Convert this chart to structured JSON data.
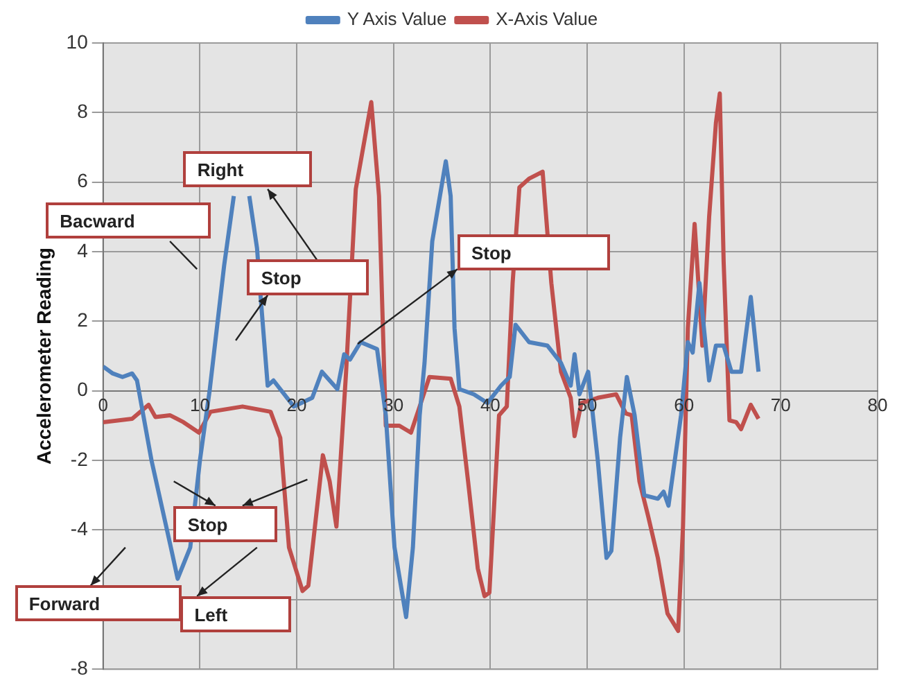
{
  "chart_data": {
    "type": "line",
    "ylabel": "Accelerometer Reading",
    "xlim": [
      0,
      80
    ],
    "xticks": [
      0,
      10,
      20,
      30,
      40,
      50,
      60,
      70,
      80
    ],
    "ylim": [
      -8,
      10
    ],
    "yticks": [
      -8,
      {
        "value": -6,
        "label": null
      },
      -4,
      -2,
      0,
      2,
      4,
      6,
      8,
      10
    ],
    "grid": true,
    "legend": "top",
    "marker": "none",
    "line_style": "solid",
    "series": [
      {
        "name": "Y Axis Value",
        "color": "#4f81bd",
        "x": [
          0,
          1,
          2,
          3,
          3.5,
          5,
          7,
          7.7,
          9,
          10,
          11,
          12.5,
          13.5,
          14.3,
          15.1,
          15.9,
          16.3,
          17,
          17.6,
          19.7,
          21.6,
          22.6,
          24.2,
          24.9,
          25.5,
          26.6,
          28.3,
          29.2,
          30.1,
          31.3,
          32,
          32.7,
          33.2,
          34,
          35.4,
          35.9,
          36.3,
          36.8,
          38.3,
          39.7,
          41.1,
          42,
          42.6,
          44,
          45.9,
          47.3,
          48.3,
          48.7,
          49.2,
          50.1,
          51.1,
          52,
          52.5,
          53.4,
          54.1,
          54.9,
          55.9,
          57.3,
          57.9,
          58.4,
          59.7,
          60.4,
          60.9,
          61.6,
          62.6,
          63.3,
          64.1,
          64.9,
          65.9,
          66.9,
          67.7
        ],
        "values": [
          0.7,
          0.5,
          0.4,
          0.5,
          0.3,
          -2,
          -4.5,
          -5.4,
          -4.5,
          -2,
          0,
          3.6,
          5.6,
          null,
          5.6,
          4.1,
          2.6,
          0.15,
          0.3,
          -0.45,
          -0.2,
          0.55,
          0.05,
          1.05,
          0.9,
          1.4,
          1.2,
          -0.7,
          -4.5,
          -6.5,
          -4.5,
          -0.7,
          0.8,
          4.3,
          6.6,
          5.6,
          1.8,
          0.05,
          -0.1,
          -0.35,
          0.15,
          0.4,
          1.9,
          1.4,
          1.3,
          0.8,
          0.15,
          1.05,
          -0.1,
          0.55,
          -2,
          -4.8,
          -4.6,
          -1.35,
          0.4,
          -0.7,
          -3,
          -3.1,
          -2.9,
          -3.3,
          -0.7,
          1.4,
          1.1,
          3.1,
          0.3,
          1.3,
          1.3,
          0.55,
          0.55,
          2.7,
          0.55
        ]
      },
      {
        "name": "X-Axis Value",
        "color": "#c0504d",
        "x": [
          0,
          3,
          4.7,
          5.4,
          6.9,
          8.3,
          9.9,
          11.1,
          14.4,
          17.3,
          18.3,
          19.2,
          20.6,
          21.2,
          22.7,
          23.4,
          24.1,
          25.1,
          26.1,
          27.7,
          28.5,
          29.2,
          30.6,
          31.8,
          32.7,
          33.7,
          35.9,
          36.8,
          37.7,
          38.7,
          39.4,
          39.9,
          40.9,
          41.7,
          42.3,
          43,
          44,
          45.4,
          46.3,
          47.3,
          48.3,
          48.7,
          49.4,
          51.1,
          53,
          54,
          54.6,
          55.4,
          56.3,
          57.3,
          58.3,
          59.4,
          59.9,
          60.4,
          61.1,
          61.9,
          62.6,
          63.3,
          63.7,
          64.1,
          64.7,
          65.4,
          65.9,
          66.9,
          67.7
        ],
        "values": [
          -0.9,
          -0.8,
          -0.4,
          -0.75,
          -0.7,
          -0.9,
          -1.2,
          -0.6,
          -0.45,
          -0.6,
          -1.35,
          -4.5,
          -5.75,
          -5.6,
          -1.85,
          -2.6,
          -3.9,
          0.55,
          5.8,
          8.3,
          5.6,
          -1,
          -1,
          -1.2,
          -0.45,
          0.4,
          0.35,
          -0.45,
          -2.6,
          -5.1,
          -5.9,
          -5.8,
          -0.7,
          -0.45,
          3.1,
          5.85,
          6.1,
          6.3,
          3.1,
          0.55,
          -0.2,
          -1.3,
          -0.35,
          -0.2,
          -0.1,
          -0.65,
          -0.7,
          -2.6,
          -3.6,
          -4.8,
          -6.4,
          -6.9,
          -3.9,
          1.8,
          4.8,
          1.3,
          5,
          7.7,
          8.55,
          3.7,
          -0.85,
          -0.9,
          -1.1,
          -0.4,
          -0.8
        ]
      }
    ],
    "annotations": [
      "Right",
      "Bacward",
      "Stop",
      "Stop",
      "Stop",
      "Forward",
      "Left"
    ]
  }
}
